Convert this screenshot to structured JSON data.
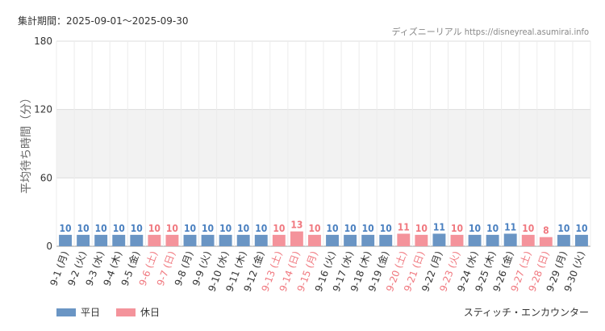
{
  "header": {
    "period_label": "集計期間：2025-09-01～2025-09-30",
    "source": "ディズニーリアル https://disneyreal.asumirai.info"
  },
  "legend": {
    "weekday": "平日",
    "holiday": "休日"
  },
  "attraction": "スティッチ・エンカウンター",
  "colors": {
    "weekday": "#6a95c4",
    "holiday": "#f4939b",
    "weekday_text": "#4a80c0",
    "holiday_text": "#f0787f"
  },
  "chart_data": {
    "type": "bar",
    "title": "",
    "xlabel": "",
    "ylabel": "平均待ち時間（分）",
    "ylim": [
      0,
      180
    ],
    "yticks": [
      0,
      60,
      120,
      180
    ],
    "grid": true,
    "legend_position": "bottom-left",
    "categories": [
      "9-1 (月)",
      "9-2 (火)",
      "9-3 (水)",
      "9-4 (木)",
      "9-5 (金)",
      "9-6 (土)",
      "9-7 (日)",
      "9-8 (月)",
      "9-9 (火)",
      "9-10 (水)",
      "9-11 (木)",
      "9-12 (金)",
      "9-13 (土)",
      "9-14 (日)",
      "9-15 (月)",
      "9-16 (火)",
      "9-17 (水)",
      "9-18 (木)",
      "9-19 (金)",
      "9-20 (土)",
      "9-21 (日)",
      "9-22 (月)",
      "9-23 (火)",
      "9-24 (水)",
      "9-25 (木)",
      "9-26 (金)",
      "9-27 (土)",
      "9-28 (日)",
      "9-29 (月)",
      "9-30 (火)"
    ],
    "values": [
      10,
      10,
      10,
      10,
      10,
      10,
      10,
      10,
      10,
      10,
      10,
      10,
      10,
      13,
      10,
      10,
      10,
      10,
      10,
      11,
      10,
      11,
      10,
      10,
      10,
      11,
      10,
      8,
      10,
      10
    ],
    "holiday": [
      false,
      false,
      false,
      false,
      false,
      true,
      true,
      false,
      false,
      false,
      false,
      false,
      true,
      true,
      true,
      false,
      false,
      false,
      false,
      true,
      true,
      false,
      true,
      false,
      false,
      false,
      true,
      true,
      false,
      false
    ]
  }
}
